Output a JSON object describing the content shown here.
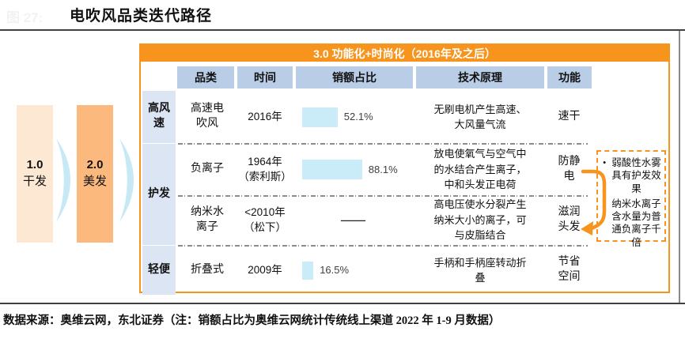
{
  "figure": {
    "number_label": "图 27:",
    "title": "电吹风品类迭代路径"
  },
  "flow": {
    "stages": [
      {
        "version": "1.0",
        "label": "干发"
      },
      {
        "version": "2.0",
        "label": "美发"
      }
    ]
  },
  "stage3_banner": "3.0 功能化+时尚化（2016年及之后）",
  "table": {
    "columns": [
      "品类",
      "时间",
      "销额占比",
      "技术原理",
      "功能"
    ],
    "groups": [
      "高风速",
      "护发",
      "轻便"
    ],
    "rows": [
      {
        "group": "高风速",
        "category": [
          "高速电",
          "吹风"
        ],
        "time": [
          "2016年"
        ],
        "share_label": "52.1%",
        "share_value": 52.1,
        "principle": "无刷电机产生高速、大风量气流",
        "function": [
          "速干"
        ]
      },
      {
        "group": "护发",
        "category": [
          "负离子"
        ],
        "time": [
          "1964年",
          "（索利斯）"
        ],
        "share_label": "88.1%",
        "share_value": 88.1,
        "principle": "放电使氧气与空气中的水结合产生离子，中和头发正电荷",
        "function": [
          "防静",
          "电"
        ]
      },
      {
        "group": "护发",
        "category": [
          "纳米水",
          "离子"
        ],
        "time": [
          "<2010年",
          "（松下）"
        ],
        "share_label": "—",
        "share_value": null,
        "principle": "高电压使水分裂产生纳米大小的离子，可与皮脂结合",
        "function": [
          "滋润",
          "头发"
        ]
      },
      {
        "group": "轻便",
        "category": [
          "折叠式"
        ],
        "time": [
          "2009年"
        ],
        "share_label": "16.5%",
        "share_value": 16.5,
        "principle": "手柄和手柄座转动折叠",
        "function": [
          "节省",
          "空间"
        ]
      }
    ]
  },
  "callout": {
    "bullets": [
      "弱酸性水雾具有护发效果",
      "纳米水离子含水量为普通负离子千倍"
    ]
  },
  "source_note": "数据来源：奥维云网，东北证券（注：销额占比为奥维云网统计传统线上渠道 2022 年 1-9 月数据）",
  "colors": {
    "accent-orange": "#F7941E",
    "header-blue": "#B9CDE6",
    "group-blue": "#DCE5F3",
    "bar-cyan": "#C9ECF8",
    "stage1-fill": "#FDE8D3",
    "stage2-fill": "#FBB97E",
    "chevron-blue": "#C7E9F6",
    "rule-dark": "#404040"
  },
  "chart_data": {
    "type": "bar",
    "orientation": "horizontal",
    "label": "销额占比",
    "unit": "%",
    "categories": [
      "高速电吹风",
      "负离子",
      "纳米水离子",
      "折叠式"
    ],
    "values": [
      52.1,
      88.1,
      null,
      16.5
    ]
  }
}
